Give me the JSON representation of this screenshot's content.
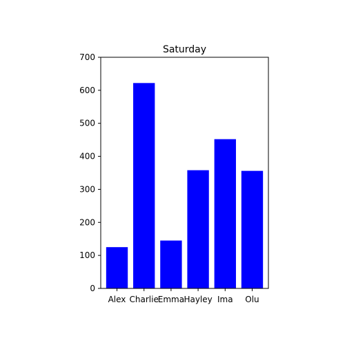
{
  "chart_data": {
    "type": "bar",
    "title": "Saturday",
    "xlabel": "",
    "ylabel": "",
    "categories": [
      "Alex",
      "Charlie",
      "Emma",
      "Hayley",
      "Ima",
      "Olu"
    ],
    "values": [
      125,
      622,
      145,
      358,
      452,
      356
    ],
    "ylim": [
      0,
      700
    ],
    "yticks": [
      0,
      100,
      200,
      300,
      400,
      500,
      600,
      700
    ],
    "bar_color": "#0000ff",
    "grid": false,
    "legend": "none"
  }
}
